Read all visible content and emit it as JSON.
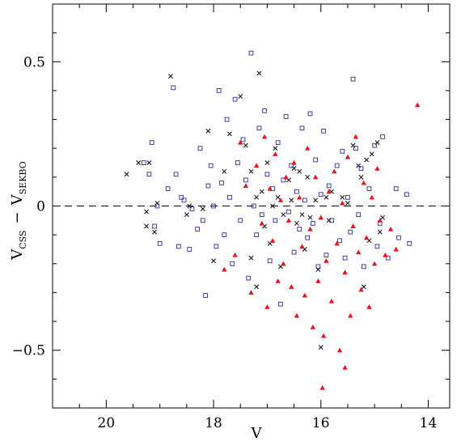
{
  "chart_data": {
    "type": "scatter",
    "xlabel": "V",
    "ylabel": {
      "main": "V",
      "sub1": "CSS",
      "dash": "−",
      "main2": "V",
      "sub2": "SEKBO"
    },
    "xlim": [
      21,
      13.6
    ],
    "ylim": [
      -0.7,
      0.7
    ],
    "x_ticks": [
      20,
      18,
      16,
      14
    ],
    "x_tick_labels": [
      "20",
      "18",
      "16",
      "14"
    ],
    "y_ticks": [
      -0.5,
      0,
      0.5
    ],
    "y_tick_labels": [
      "−0.5",
      "0",
      "0.5"
    ],
    "reference_line": {
      "y": 0,
      "style": "dashed"
    },
    "series": [
      {
        "marker": "cross",
        "color": "#1a1a1a",
        "points": [
          [
            19.62,
            0.11
          ],
          [
            19.4,
            0.15
          ],
          [
            19.2,
            0.15
          ],
          [
            19.25,
            -0.02
          ],
          [
            19.25,
            -0.07
          ],
          [
            19.1,
            -0.09
          ],
          [
            19.05,
            0.01
          ],
          [
            18.8,
            0.45
          ],
          [
            18.5,
            -0.03
          ],
          [
            18.45,
            0.0
          ],
          [
            18.2,
            -0.01
          ],
          [
            18.1,
            0.26
          ],
          [
            18.0,
            -0.19
          ],
          [
            17.8,
            0.12
          ],
          [
            17.7,
            0.25
          ],
          [
            17.5,
            0.38
          ],
          [
            17.4,
            0.21
          ],
          [
            17.3,
            -0.18
          ],
          [
            17.3,
            0.12
          ],
          [
            17.2,
            0.03
          ],
          [
            17.2,
            -0.28
          ],
          [
            17.15,
            0.46
          ],
          [
            17.1,
            0.05
          ],
          [
            17.05,
            -0.07
          ],
          [
            17.0,
            0.15
          ],
          [
            16.95,
            -0.13
          ],
          [
            16.9,
            0.0
          ],
          [
            16.85,
            0.2
          ],
          [
            16.8,
            0.03
          ],
          [
            16.75,
            -0.21
          ],
          [
            16.7,
            -0.03
          ],
          [
            16.6,
            0.09
          ],
          [
            16.55,
            0.02
          ],
          [
            16.5,
            0.13
          ],
          [
            16.45,
            -0.06
          ],
          [
            16.4,
            0.12
          ],
          [
            16.35,
            -0.03
          ],
          [
            16.3,
            -0.15
          ],
          [
            16.25,
            0.1
          ],
          [
            16.2,
            -0.04
          ],
          [
            16.1,
            0.02
          ],
          [
            16.05,
            -0.22
          ],
          [
            16.0,
            -0.49
          ],
          [
            15.9,
            0.03
          ],
          [
            15.85,
            -0.05
          ],
          [
            15.8,
            0.05
          ],
          [
            15.6,
            0.03
          ],
          [
            15.5,
            0.01
          ],
          [
            15.4,
            0.21
          ],
          [
            15.3,
            0.14
          ],
          [
            15.25,
            0.1
          ],
          [
            15.2,
            -0.28
          ],
          [
            15.15,
            0.16
          ],
          [
            15.1,
            -0.12
          ],
          [
            15.05,
            0.18
          ],
          [
            14.95,
            0.22
          ],
          [
            14.9,
            -0.09
          ],
          [
            14.85,
            -0.04
          ]
        ]
      },
      {
        "marker": "open-square",
        "color": "#2b2b9a",
        "points": [
          [
            19.3,
            0.15
          ],
          [
            19.2,
            0.11
          ],
          [
            19.15,
            0.22
          ],
          [
            19.1,
            -0.07
          ],
          [
            19.05,
            0.0
          ],
          [
            19.0,
            -0.13
          ],
          [
            18.85,
            0.06
          ],
          [
            18.75,
            0.41
          ],
          [
            18.7,
            0.11
          ],
          [
            18.65,
            -0.14
          ],
          [
            18.6,
            0.03
          ],
          [
            18.55,
            0.02
          ],
          [
            18.45,
            -0.15
          ],
          [
            18.4,
            -0.01
          ],
          [
            18.3,
            -0.08
          ],
          [
            18.25,
            0.2
          ],
          [
            18.2,
            -0.05
          ],
          [
            18.15,
            -0.31
          ],
          [
            18.1,
            0.07
          ],
          [
            18.05,
            0.14
          ],
          [
            18.0,
            0.0
          ],
          [
            17.95,
            -0.14
          ],
          [
            17.9,
            0.4
          ],
          [
            17.85,
            0.08
          ],
          [
            17.8,
            -0.1
          ],
          [
            17.75,
            0.3
          ],
          [
            17.7,
            0.03
          ],
          [
            17.65,
            -0.2
          ],
          [
            17.6,
            0.37
          ],
          [
            17.55,
            0.15
          ],
          [
            17.5,
            -0.05
          ],
          [
            17.45,
            0.23
          ],
          [
            17.4,
            0.09
          ],
          [
            17.35,
            -0.25
          ],
          [
            17.3,
            0.53
          ],
          [
            17.25,
            0.0
          ],
          [
            17.2,
            -0.1
          ],
          [
            17.15,
            0.27
          ],
          [
            17.1,
            -0.03
          ],
          [
            17.05,
            0.33
          ],
          [
            17.0,
            0.11
          ],
          [
            16.95,
            -0.19
          ],
          [
            16.9,
            0.06
          ],
          [
            16.85,
            -0.05
          ],
          [
            16.8,
            0.22
          ],
          [
            16.75,
            -0.34
          ],
          [
            16.7,
            0.09
          ],
          [
            16.65,
            0.31
          ],
          [
            16.6,
            -0.02
          ],
          [
            16.55,
            0.14
          ],
          [
            16.5,
            -0.16
          ],
          [
            16.45,
            0.05
          ],
          [
            16.4,
            -0.08
          ],
          [
            16.35,
            0.27
          ],
          [
            16.3,
            0.02
          ],
          [
            16.25,
            -0.11
          ],
          [
            16.2,
            0.32
          ],
          [
            16.15,
            -0.06
          ],
          [
            16.1,
            0.16
          ],
          [
            16.05,
            -0.21
          ],
          [
            16.0,
            0.04
          ],
          [
            15.95,
            0.26
          ],
          [
            15.9,
            -0.17
          ],
          [
            15.85,
            0.07
          ],
          [
            15.8,
            -0.05
          ],
          [
            15.7,
            0.14
          ],
          [
            15.65,
            -0.12
          ],
          [
            15.6,
            0.19
          ],
          [
            15.55,
            -0.18
          ],
          [
            15.5,
            0.03
          ],
          [
            15.45,
            -0.09
          ],
          [
            15.4,
            0.44
          ],
          [
            15.35,
            0.2
          ],
          [
            15.3,
            -0.03
          ],
          [
            15.25,
            0.13
          ],
          [
            15.2,
            -0.21
          ],
          [
            15.1,
            0.06
          ],
          [
            15.0,
            0.21
          ],
          [
            14.95,
            -0.14
          ],
          [
            14.9,
            -0.06
          ],
          [
            14.85,
            0.24
          ],
          [
            14.75,
            -0.18
          ],
          [
            14.6,
            0.06
          ],
          [
            14.55,
            -0.11
          ],
          [
            14.4,
            0.04
          ],
          [
            14.35,
            -0.13
          ]
        ]
      },
      {
        "marker": "filled-triangle",
        "color": "#e8141c",
        "points": [
          [
            17.8,
            -0.22
          ],
          [
            17.6,
            -0.17
          ],
          [
            17.5,
            0.22
          ],
          [
            17.4,
            0.07
          ],
          [
            17.3,
            -0.3
          ],
          [
            17.2,
            0.14
          ],
          [
            17.1,
            -0.06
          ],
          [
            17.05,
            0.24
          ],
          [
            17.0,
            -0.35
          ],
          [
            16.95,
            0.06
          ],
          [
            16.9,
            -0.12
          ],
          [
            16.85,
            0.18
          ],
          [
            16.8,
            -0.26
          ],
          [
            16.75,
            0.02
          ],
          [
            16.7,
            -0.2
          ],
          [
            16.65,
            0.1
          ],
          [
            16.6,
            -0.05
          ],
          [
            16.55,
            -0.28
          ],
          [
            16.5,
            0.15
          ],
          [
            16.45,
            -0.38
          ],
          [
            16.4,
            0.03
          ],
          [
            16.35,
            -0.14
          ],
          [
            16.3,
            -0.31
          ],
          [
            16.25,
            0.2
          ],
          [
            16.2,
            -0.08
          ],
          [
            16.15,
            -0.42
          ],
          [
            16.1,
            0.1
          ],
          [
            16.05,
            -0.26
          ],
          [
            16.0,
            -0.04
          ],
          [
            15.97,
            -0.63
          ],
          [
            15.9,
            -0.19
          ],
          [
            15.85,
            0.05
          ],
          [
            15.8,
            -0.33
          ],
          [
            15.75,
            0.12
          ],
          [
            15.7,
            -0.13
          ],
          [
            15.65,
            -0.5
          ],
          [
            15.6,
            0.01
          ],
          [
            15.55,
            -0.23
          ],
          [
            15.5,
            0.17
          ],
          [
            15.45,
            -0.38
          ],
          [
            15.4,
            -0.07
          ],
          [
            15.35,
            0.24
          ],
          [
            15.3,
            -0.16
          ],
          [
            15.25,
            -0.29
          ],
          [
            15.2,
            0.08
          ],
          [
            15.15,
            -0.11
          ],
          [
            15.1,
            -0.35
          ],
          [
            15.05,
            0.03
          ],
          [
            15.0,
            -0.2
          ],
          [
            14.95,
            0.13
          ],
          [
            14.9,
            -0.05
          ],
          [
            14.8,
            -0.17
          ],
          [
            14.7,
            -0.08
          ],
          [
            14.6,
            -0.15
          ],
          [
            14.2,
            0.35
          ],
          [
            15.55,
            -0.56
          ],
          [
            15.95,
            -0.45
          ]
        ]
      }
    ]
  }
}
